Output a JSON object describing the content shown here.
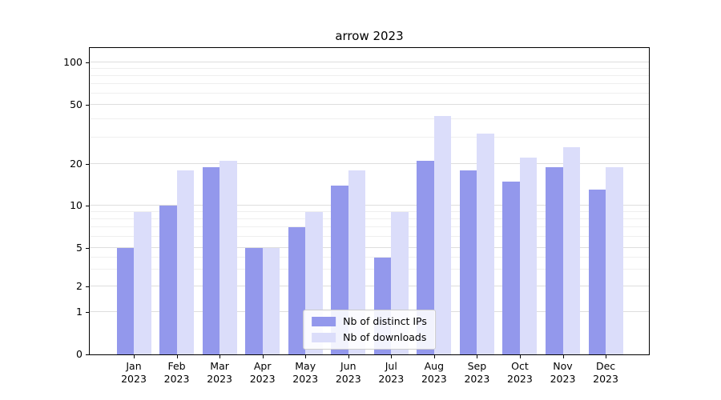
{
  "chart_data": {
    "type": "bar",
    "title": "arrow 2023",
    "year": "2023",
    "categories": [
      "Jan",
      "Feb",
      "Mar",
      "Apr",
      "May",
      "Jun",
      "Jul",
      "Aug",
      "Sep",
      "Oct",
      "Nov",
      "Dec"
    ],
    "series": [
      {
        "name": "Nb of distinct IPs",
        "color": "#9398ec",
        "values": [
          5,
          10,
          19,
          5,
          7,
          14,
          4,
          21,
          18,
          15,
          19,
          13
        ]
      },
      {
        "name": "Nb of downloads",
        "color": "#dbddfa",
        "values": [
          9,
          18,
          21,
          5,
          9,
          18,
          9,
          42,
          32,
          22,
          26,
          19
        ]
      }
    ],
    "y_major_ticks": [
      0,
      1,
      2,
      5,
      10,
      20,
      50,
      100
    ],
    "y_minor_ticks": [
      3,
      4,
      6,
      7,
      8,
      9,
      30,
      40,
      60,
      70,
      80,
      90
    ],
    "yscale": "symlog",
    "ylim": [
      0,
      127
    ],
    "grid": "horizontal",
    "legend_position": "lower center"
  }
}
